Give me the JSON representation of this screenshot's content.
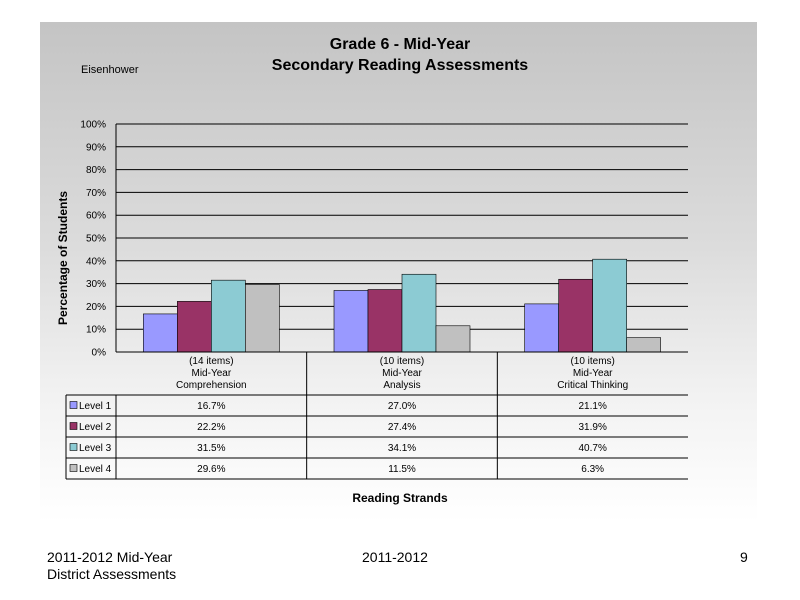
{
  "header": {
    "title_line1": "Grade 6 - Mid-Year",
    "title_line2": "Secondary Reading Assessments",
    "school": "Eisenhower"
  },
  "footer": {
    "left_line1": "2011-2012  Mid-Year",
    "left_line2": "District Assessments",
    "center": "2011-2012",
    "page_number": "9"
  },
  "chart_data": {
    "type": "bar",
    "title": "Grade 6 - Mid-Year",
    "subtitle": "Secondary Reading Assessments",
    "ylabel": "Percentage of Students",
    "xlabel": "Reading Strands",
    "ylim": [
      0,
      100
    ],
    "yticks": [
      "0%",
      "10%",
      "20%",
      "30%",
      "40%",
      "50%",
      "60%",
      "70%",
      "80%",
      "90%",
      "100%"
    ],
    "grid": true,
    "legend": "table-below",
    "categories": [
      [
        "(14 items)",
        "Mid-Year",
        "Comprehension"
      ],
      [
        "(10 items)",
        "Mid-Year",
        "Analysis"
      ],
      [
        "(10 items)",
        "Mid-Year",
        "Critical Thinking"
      ]
    ],
    "series": [
      {
        "name": "Level 1",
        "color": "#9999ff",
        "values": [
          16.7,
          27.0,
          21.1
        ],
        "labels": [
          "16.7%",
          "27.0%",
          "21.1%"
        ]
      },
      {
        "name": "Level 2",
        "color": "#993366",
        "values": [
          22.2,
          27.4,
          31.9
        ],
        "labels": [
          "22.2%",
          "27.4%",
          "31.9%"
        ]
      },
      {
        "name": "Level 3",
        "color": "#8ccbd3",
        "values": [
          31.5,
          34.1,
          40.7
        ],
        "labels": [
          "31.5%",
          "34.1%",
          "40.7%"
        ]
      },
      {
        "name": "Level 4",
        "color": "#c0c0c0",
        "values": [
          29.6,
          11.5,
          6.3
        ],
        "labels": [
          "29.6%",
          "11.5%",
          "6.3%"
        ]
      }
    ]
  }
}
